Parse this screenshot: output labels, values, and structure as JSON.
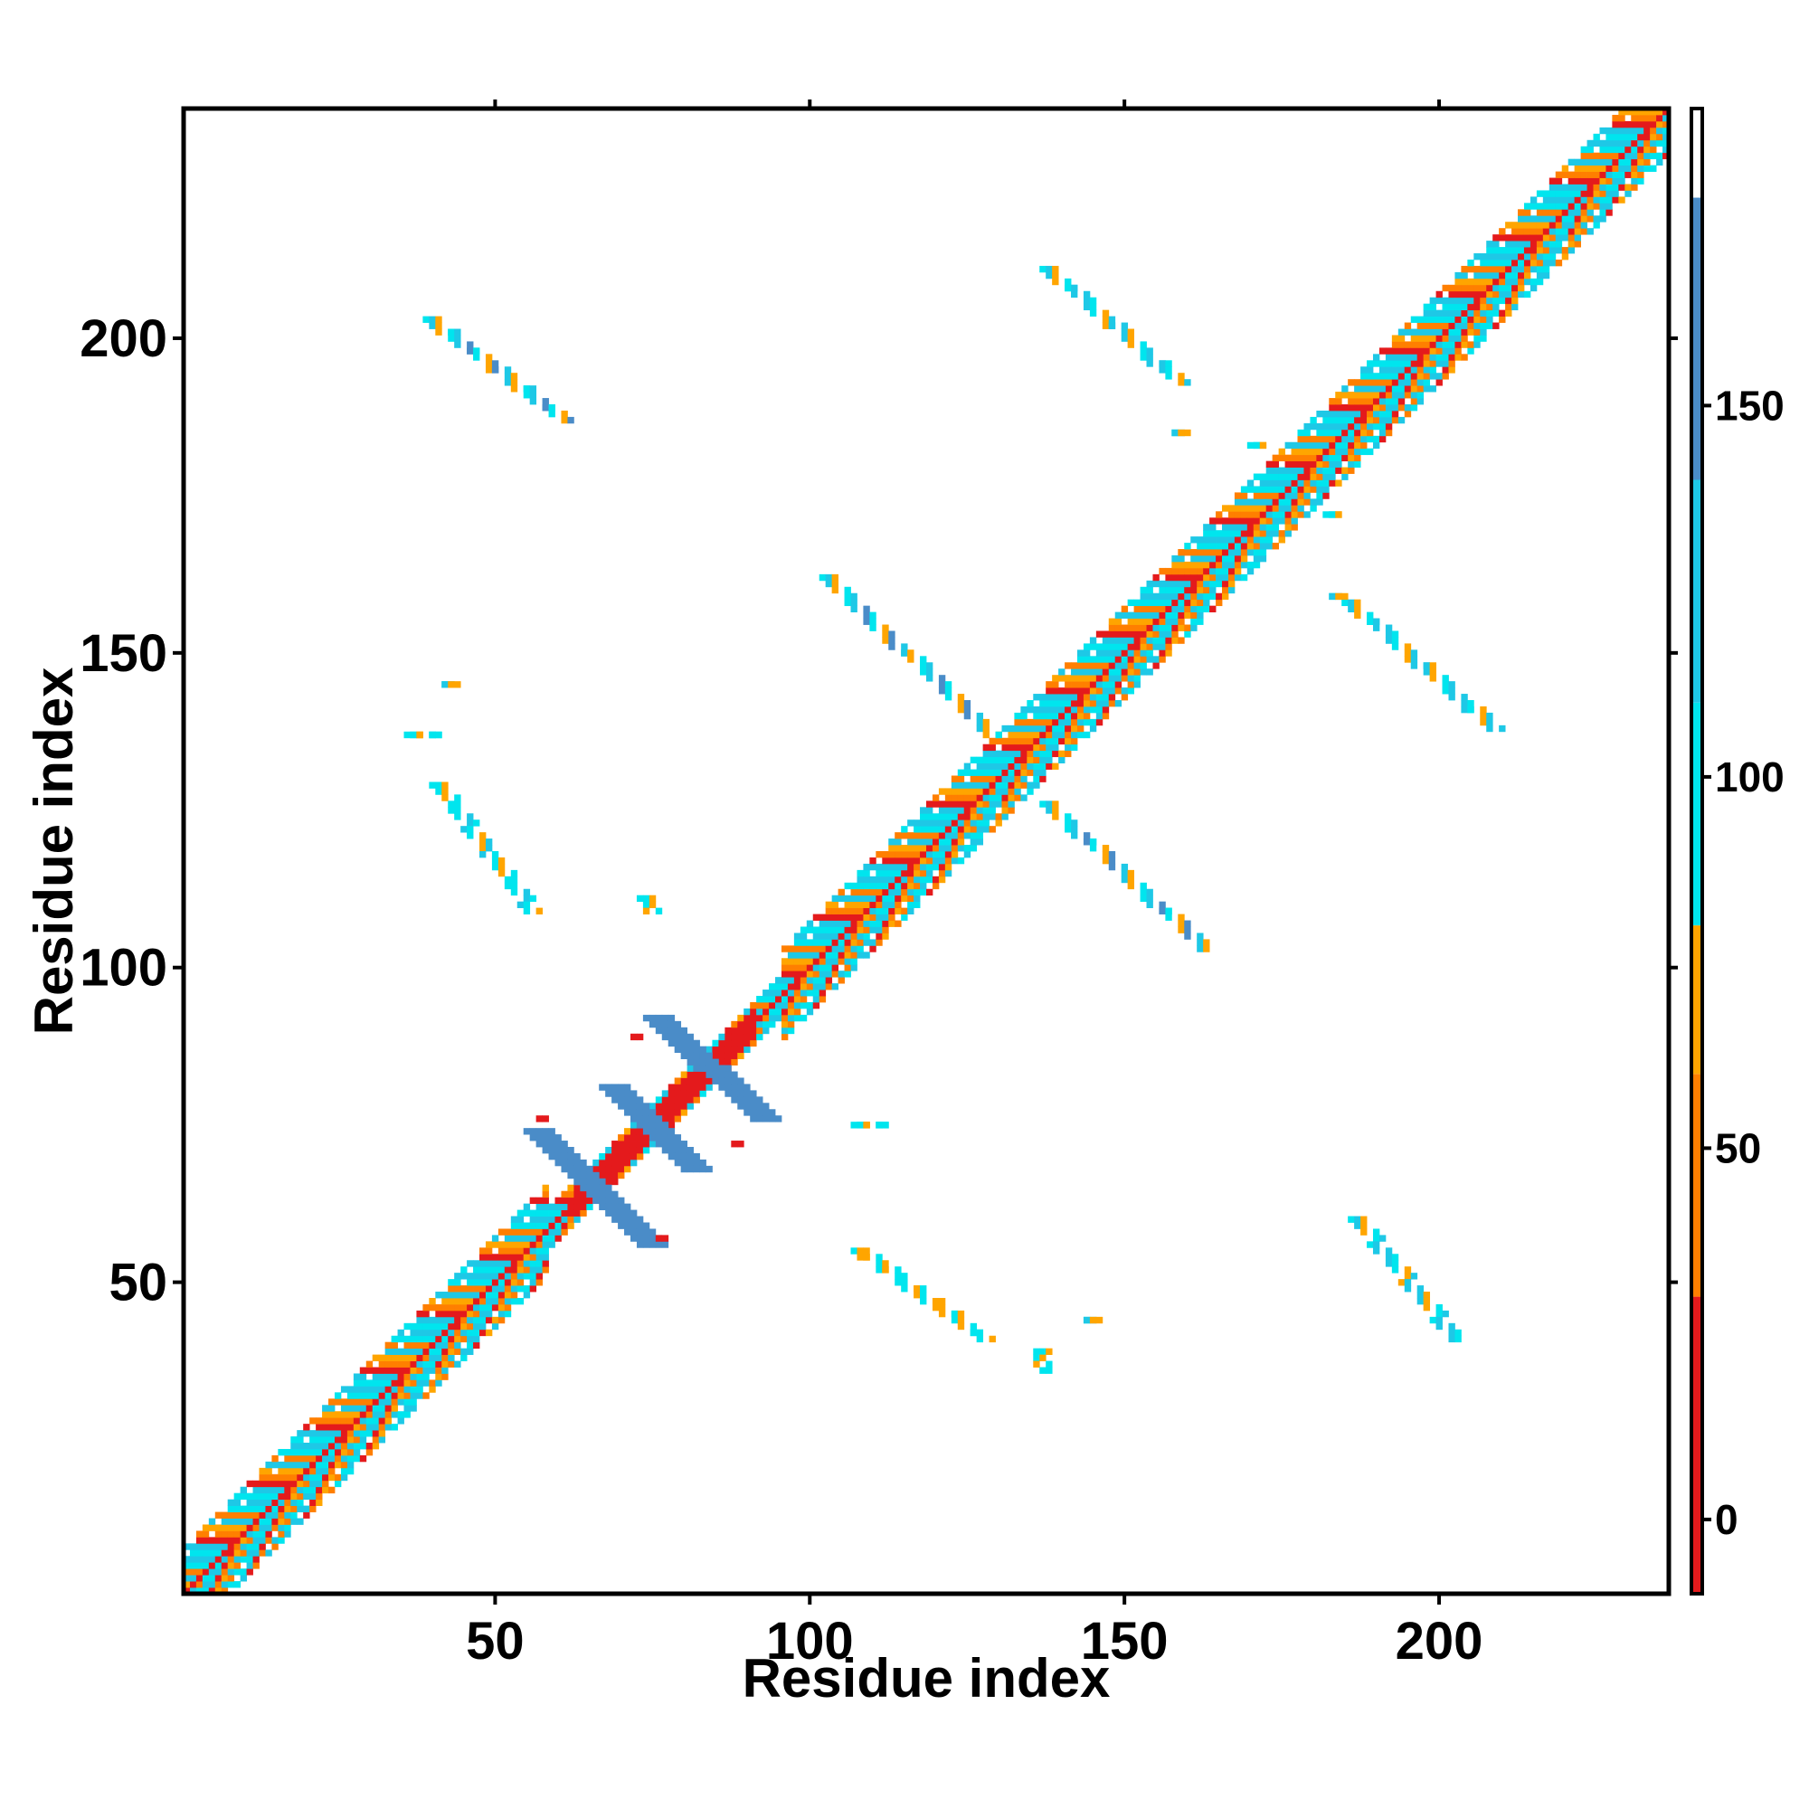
{
  "chart_data": {
    "type": "heatmap",
    "title": "",
    "xlabel": "Residue index",
    "ylabel": "Residue index",
    "xlim": [
      0.5,
      236.5
    ],
    "ylim": [
      0.5,
      236.5
    ],
    "x_ticks": [
      50,
      100,
      150,
      200
    ],
    "y_ticks": [
      50,
      100,
      150,
      200
    ],
    "x_tick_labels": [
      "50",
      "100",
      "150",
      "200"
    ],
    "y_tick_labels": [
      "50",
      "100",
      "150",
      "200"
    ],
    "colorbar": {
      "range": [
        -10,
        190
      ],
      "ticks": [
        0,
        50,
        100,
        150
      ],
      "tick_labels": [
        "0",
        "50",
        "100",
        "150"
      ],
      "bands": [
        {
          "from": -10,
          "to": 30,
          "color": "#e41a1c"
        },
        {
          "from": 30,
          "to": 60,
          "color": "#ff7f00"
        },
        {
          "from": 60,
          "to": 80,
          "color": "#ffa500"
        },
        {
          "from": 80,
          "to": 110,
          "color": "#00e5ee"
        },
        {
          "from": 110,
          "to": 140,
          "color": "#1ec8e6"
        },
        {
          "from": 140,
          "to": 178,
          "color": "#4a8cc8"
        },
        {
          "from": 178,
          "to": 190,
          "color": "#ffffff"
        }
      ]
    },
    "grid": false,
    "legend": "colorbar right",
    "diagonal": {
      "from": 1,
      "to": 236
    },
    "contact_segments": [
      {
        "x": [
          40,
          61
        ],
        "y": [
          203,
          187
        ],
        "value": 120
      },
      {
        "x": [
          41,
          56
        ],
        "y": [
          129,
          109
        ],
        "value": 90
      },
      {
        "x": [
          37,
          41
        ],
        "y": [
          137,
          137
        ],
        "value": 100
      },
      {
        "x": [
          43,
          43
        ],
        "y": [
          145,
          145
        ],
        "value": 110
      },
      {
        "x": [
          103,
          129
        ],
        "y": [
          162,
          137
        ],
        "value": 120
      },
      {
        "x": [
          138,
          163
        ],
        "y": [
          126,
          103
        ],
        "value": 120
      },
      {
        "x": [
          138,
          159
        ],
        "y": [
          211,
          193
        ],
        "value": 110
      },
      {
        "x": [
          186,
          209
        ],
        "y": [
          158,
          138
        ],
        "value": 110
      },
      {
        "x": [
          108,
          128
        ],
        "y": [
          55,
          41
        ],
        "value": 70
      },
      {
        "x": [
          187,
          203
        ],
        "y": [
          60,
          41
        ],
        "value": 110
      },
      {
        "x": [
          108,
          112
        ],
        "y": [
          75,
          75
        ],
        "value": 100
      },
      {
        "x": [
          74,
          75
        ],
        "y": [
          111,
          109
        ],
        "value": 95
      },
      {
        "x": [
          183,
          184
        ],
        "y": [
          172,
          172
        ],
        "value": 100
      },
      {
        "x": [
          171,
          172
        ],
        "y": [
          183,
          183
        ],
        "value": 100
      },
      {
        "x": [
          137,
          137
        ],
        "y": [
          39,
          36
        ],
        "value": 100
      },
      {
        "x": [
          145,
          145
        ],
        "y": [
          44,
          44
        ],
        "value": 110
      },
      {
        "x": [
          159,
          159
        ],
        "y": [
          185,
          185
        ],
        "value": 130
      },
      {
        "x": [
          184,
          184
        ],
        "y": [
          159,
          159
        ],
        "value": 120
      }
    ],
    "wing_segments": [
      {
        "x": [
          57,
          75
        ],
        "y": [
          74,
          56
        ],
        "value": 155
      },
      {
        "x": [
          69,
          82
        ],
        "y": [
          81,
          68
        ],
        "value": 155
      },
      {
        "x": [
          76,
          93
        ],
        "y": [
          92,
          76
        ],
        "value": 155
      }
    ],
    "red_spots": [
      {
        "x": 72,
        "y": 89,
        "value": 10
      },
      {
        "x": 88,
        "y": 72,
        "value": 10
      },
      {
        "x": 57,
        "y": 76,
        "value": 20
      },
      {
        "x": 76,
        "y": 57,
        "value": 20
      }
    ]
  }
}
